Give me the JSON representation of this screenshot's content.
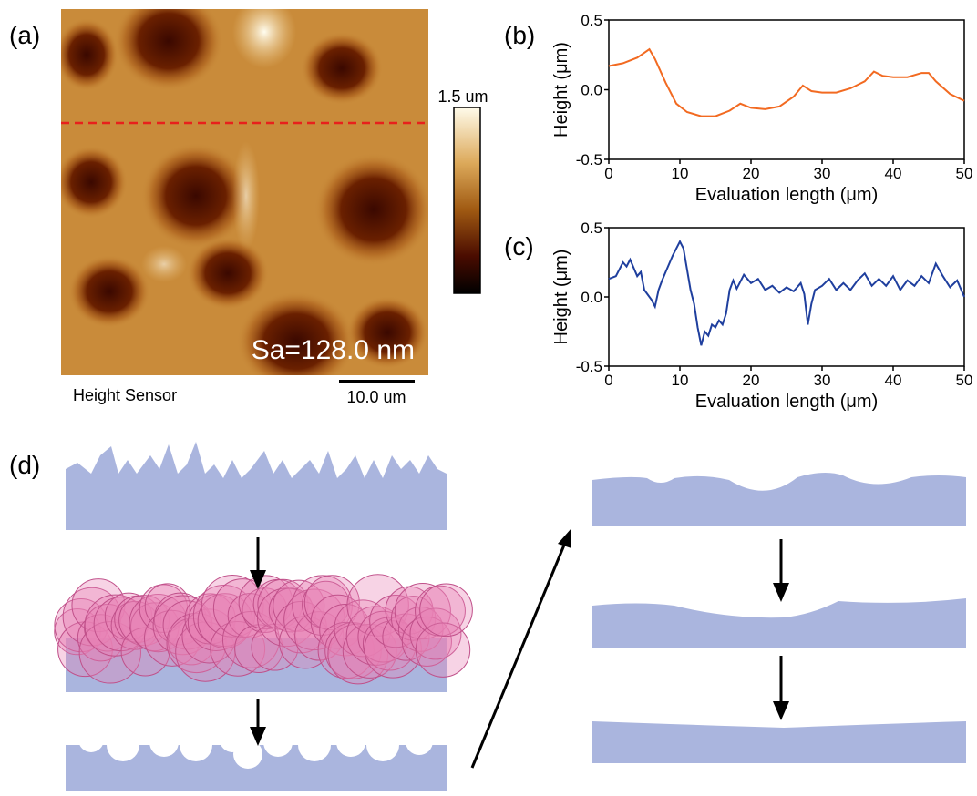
{
  "panels": {
    "a": {
      "label": "(a)",
      "scale_max": "1.5 um",
      "roughness": "Sa=128.0 nm",
      "channel": "Height Sensor",
      "scale_bar": "10.0 um"
    },
    "b": {
      "label": "(b)"
    },
    "c": {
      "label": "(c)"
    },
    "d": {
      "label": "(d)"
    }
  },
  "chart_data": [
    {
      "type": "line",
      "x_label": "Evaluation length (μm)",
      "y_label": "Height (μm)",
      "x": [
        0,
        2,
        4,
        5.7,
        6.5,
        8,
        9.5,
        11,
        13,
        15,
        17,
        18.5,
        20,
        22,
        24,
        26,
        27.3,
        28.5,
        30,
        32,
        34,
        36,
        37.3,
        38.5,
        40,
        42,
        44,
        45,
        46,
        48,
        50
      ],
      "series": [
        {
          "color": "#f26a21",
          "values": [
            0.17,
            0.19,
            0.23,
            0.29,
            0.22,
            0.05,
            -0.1,
            -0.16,
            -0.19,
            -0.19,
            -0.15,
            -0.1,
            -0.13,
            -0.14,
            -0.12,
            -0.05,
            0.03,
            -0.01,
            -0.02,
            -0.02,
            0.01,
            0.06,
            0.13,
            0.1,
            0.09,
            0.09,
            0.12,
            0.12,
            0.06,
            -0.03,
            -0.08
          ]
        }
      ],
      "xlim": [
        0,
        50
      ],
      "xticks": [
        0,
        10,
        20,
        30,
        40,
        50
      ],
      "ylim": [
        -0.5,
        0.5
      ],
      "yticks": [
        -0.5,
        {
          "value": 0,
          "label": "0.0"
        },
        0.5
      ]
    },
    {
      "type": "line",
      "x_label": "Evaluation length (μm)",
      "y_label": "Height (μm)",
      "x": [
        0,
        1,
        2,
        2.5,
        3,
        4,
        4.5,
        5,
        6,
        6.5,
        7,
        7.5,
        8,
        9,
        9.5,
        10,
        10.5,
        11,
        11.5,
        12,
        12.5,
        13,
        13.5,
        14,
        14.5,
        15,
        15.5,
        16,
        16.5,
        17,
        17.5,
        18,
        19,
        20,
        21,
        22,
        23,
        24,
        25,
        26,
        27,
        27.5,
        28,
        28.5,
        29,
        30,
        31,
        32,
        33,
        34,
        35,
        36,
        37,
        38,
        39,
        40,
        41,
        42,
        43,
        44,
        45,
        46,
        47,
        48,
        49,
        50
      ],
      "series": [
        {
          "color": "#1f3f9e",
          "values": [
            0.13,
            0.15,
            0.25,
            0.22,
            0.27,
            0.15,
            0.18,
            0.05,
            -0.02,
            -0.07,
            0.05,
            0.12,
            0.18,
            0.3,
            0.35,
            0.4,
            0.35,
            0.2,
            0.05,
            -0.05,
            -0.22,
            -0.35,
            -0.25,
            -0.28,
            -0.2,
            -0.22,
            -0.17,
            -0.2,
            -0.12,
            0.05,
            0.12,
            0.06,
            0.16,
            0.1,
            0.13,
            0.05,
            0.08,
            0.03,
            0.07,
            0.04,
            0.1,
            0.02,
            -0.2,
            -0.05,
            0.05,
            0.08,
            0.13,
            0.05,
            0.1,
            0.05,
            0.12,
            0.17,
            0.08,
            0.13,
            0.08,
            0.15,
            0.05,
            0.12,
            0.08,
            0.15,
            0.1,
            0.24,
            0.15,
            0.07,
            0.12,
            0.0
          ]
        }
      ],
      "xlim": [
        0,
        50
      ],
      "xticks": [
        0,
        10,
        20,
        30,
        40,
        50
      ],
      "ylim": [
        -0.5,
        0.5
      ],
      "yticks": [
        -0.5,
        {
          "value": 0,
          "label": "0.0"
        },
        0.5
      ]
    }
  ]
}
